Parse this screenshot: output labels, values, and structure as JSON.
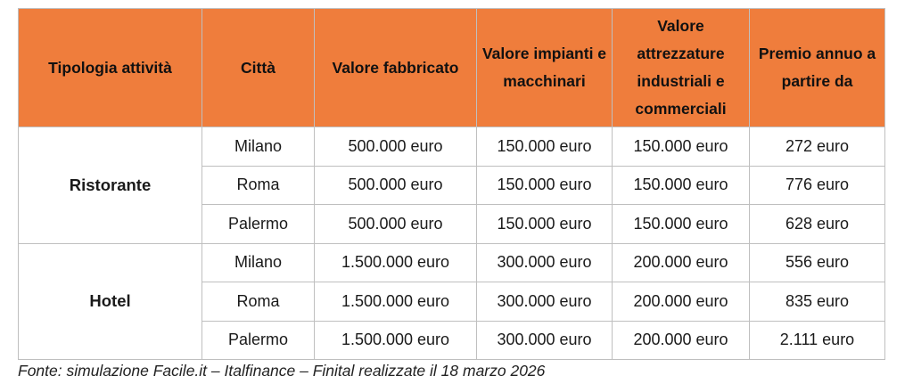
{
  "headers": [
    "Tipologia attività",
    "Città",
    "Valore fabbricato",
    "Valore impianti e macchinari",
    "Valore attrezzature industriali e commerciali",
    "Premio annuo a partire da"
  ],
  "groups": [
    {
      "tipologia": "Ristorante",
      "rows": [
        {
          "citta": "Milano",
          "fabbricato": "500.000 euro",
          "impianti": "150.000 euro",
          "attrezzature": "150.000 euro",
          "premio": "272 euro"
        },
        {
          "citta": "Roma",
          "fabbricato": "500.000 euro",
          "impianti": "150.000 euro",
          "attrezzature": "150.000 euro",
          "premio": "776 euro"
        },
        {
          "citta": "Palermo",
          "fabbricato": "500.000 euro",
          "impianti": "150.000 euro",
          "attrezzature": "150.000 euro",
          "premio": "628 euro"
        }
      ]
    },
    {
      "tipologia": "Hotel",
      "rows": [
        {
          "citta": "Milano",
          "fabbricato": "1.500.000 euro",
          "impianti": "300.000 euro",
          "attrezzature": "200.000 euro",
          "premio": "556 euro"
        },
        {
          "citta": "Roma",
          "fabbricato": "1.500.000 euro",
          "impianti": "300.000 euro",
          "attrezzature": "200.000 euro",
          "premio": "835 euro"
        },
        {
          "citta": "Palermo",
          "fabbricato": "1.500.000 euro",
          "impianti": "300.000 euro",
          "attrezzature": "200.000 euro",
          "premio": "2.111 euro"
        }
      ]
    }
  ],
  "source": "Fonte: simulazione Facile.it – Italfinance – Finital realizzate il 18 marzo 2026",
  "colors": {
    "header_background": "#ef7d3c",
    "border": "#bfbfbf"
  }
}
